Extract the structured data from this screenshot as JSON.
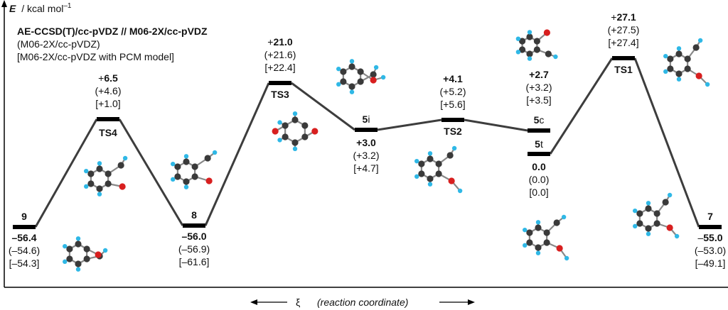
{
  "axis": {
    "y_label_symbol": "E",
    "y_label_unit": "/ kcal mol",
    "y_label_sup": "–1",
    "x_label_symbol": "ξ",
    "x_label_text": "(reaction coordinate)"
  },
  "method": {
    "line1": "AE-CCSD(T)/cc-pVDZ // M06-2X/cc-pVDZ",
    "line2": "(M06-2X/cc-pVDZ)",
    "line3": "[M06-2X/cc-pVDZ with PCM model]"
  },
  "chart_data": {
    "type": "energy_profile",
    "y_unit": "kcal mol–1",
    "levels": [
      {
        "id": "9",
        "name": "9",
        "e_ccsd": "–56.4",
        "e_m06": "(–54.6)",
        "e_pcm": "[–54.3]"
      },
      {
        "id": "TS4",
        "name": "TS4",
        "e_ccsd": "6.5",
        "e_ccsd_sign": "+",
        "e_m06": "(+4.6)",
        "e_pcm": "[+1.0]"
      },
      {
        "id": "8",
        "name": "8",
        "e_ccsd": "–56.0",
        "e_m06": "(–56.9)",
        "e_pcm": "[–61.6]"
      },
      {
        "id": "TS3",
        "name": "TS3",
        "e_ccsd": "21.0",
        "e_ccsd_sign": "+",
        "e_m06": "(+21.6)",
        "e_pcm": "[+22.4]"
      },
      {
        "id": "5i",
        "name": "5i",
        "e_ccsd": "+3.0",
        "e_m06": "(+3.2)",
        "e_pcm": "[+4.7]"
      },
      {
        "id": "TS2",
        "name": "TS2",
        "e_ccsd": "+4.1",
        "e_m06": "(+5.2)",
        "e_pcm": "[+5.6]"
      },
      {
        "id": "5c",
        "name": "5c",
        "e_ccsd": "+2.7",
        "e_m06": "(+3.2)",
        "e_pcm": "[+3.5]"
      },
      {
        "id": "5t",
        "name": "5t",
        "e_ccsd": "0.0",
        "e_m06": "(0.0)",
        "e_pcm": "[0.0]"
      },
      {
        "id": "TS1",
        "name": "TS1",
        "e_ccsd": "27.1",
        "e_ccsd_sign": "+",
        "e_m06": "(+27.5)",
        "e_pcm": "[+27.4]"
      },
      {
        "id": "7",
        "name": "7",
        "e_ccsd": "55.0",
        "e_ccsd_sign": "–",
        "e_m06": "(–53.0)",
        "e_pcm": "[–49.1]"
      }
    ],
    "connections": [
      [
        "9",
        "TS4"
      ],
      [
        "TS4",
        "8"
      ],
      [
        "8",
        "TS3"
      ],
      [
        "TS3",
        "5i"
      ],
      [
        "5i",
        "TS2"
      ],
      [
        "TS2",
        "5c"
      ],
      [
        "5t",
        "TS1"
      ],
      [
        "TS1",
        "7"
      ]
    ]
  },
  "colors": {
    "line": "#3d3d3d",
    "level": "#000000",
    "carbon": "#3a3a3a",
    "hydrogen": "#2fb8e6",
    "oxygen": "#d81f1f"
  }
}
